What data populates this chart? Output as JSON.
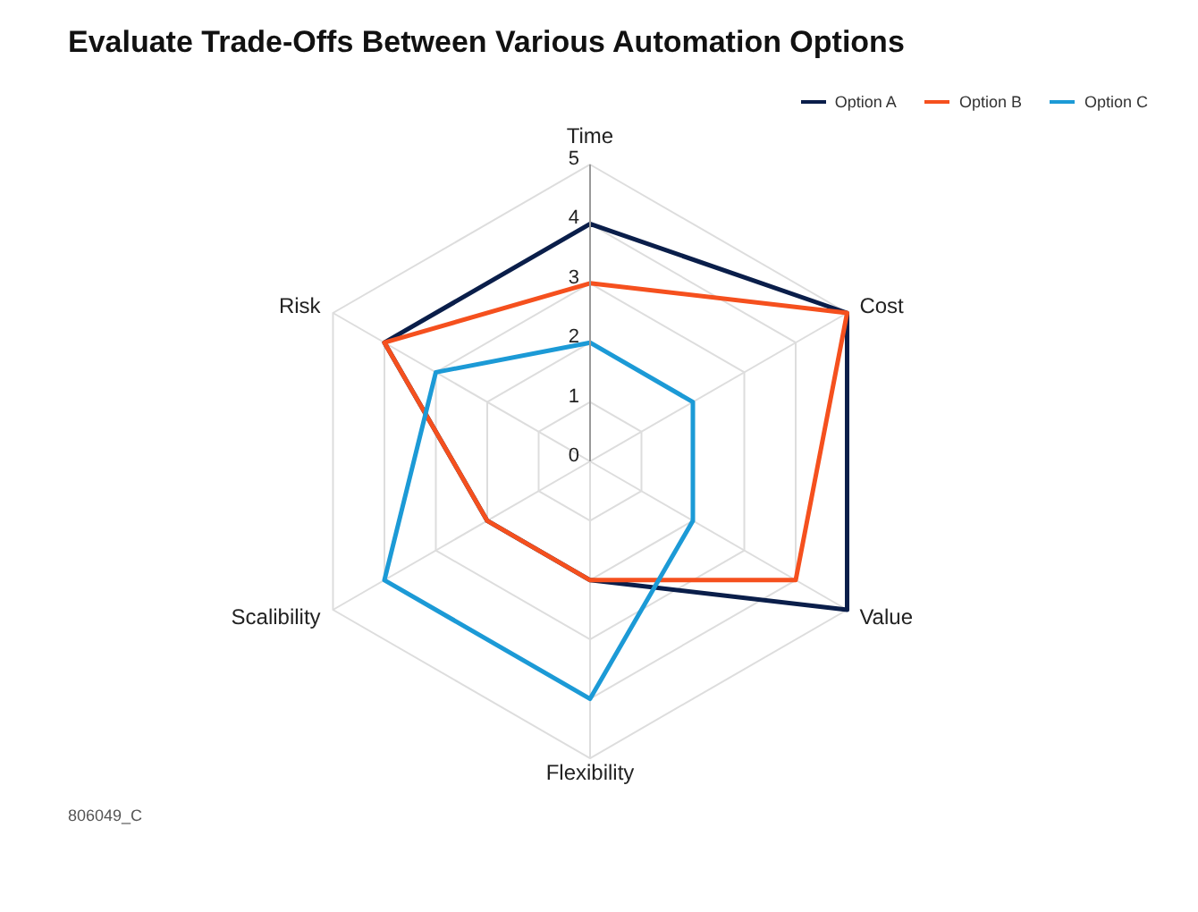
{
  "chart_data": {
    "type": "radar",
    "title": "Evaluate Trade-Offs Between Various Automation Options",
    "categories": [
      "Time",
      "Cost",
      "Value",
      "Flexibility",
      "Scalibility",
      "Risk"
    ],
    "series": [
      {
        "name": "Option A",
        "color": "#0a1e4a",
        "values": [
          4,
          5,
          5,
          2,
          2,
          4
        ]
      },
      {
        "name": "Option B",
        "color": "#f5501e",
        "values": [
          3,
          5,
          4,
          2,
          2,
          4
        ]
      },
      {
        "name": "Option C",
        "color": "#1c9ad6",
        "values": [
          2,
          2,
          2,
          4,
          4,
          3
        ]
      }
    ],
    "ylim": [
      0,
      5
    ],
    "yticks": [
      0,
      1,
      2,
      3,
      4,
      5
    ],
    "grid": true,
    "legend": "top right",
    "marker": "none",
    "annotations": [
      "806049_C"
    ]
  }
}
